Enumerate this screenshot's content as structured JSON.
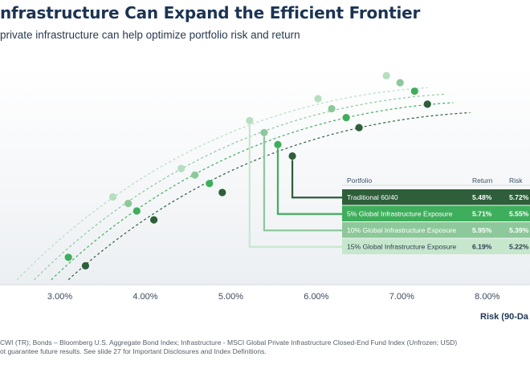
{
  "header": {
    "title": "nfrastructure Can Expand the Efficient Frontier",
    "subtitle": "private infrastructure can help optimize portfolio risk and return"
  },
  "chart_data": {
    "type": "line",
    "title": "nfrastructure Can Expand the Efficient Frontier",
    "subtitle": "private infrastructure can help optimize portfolio risk and return",
    "xlabel": "Risk (90-Da",
    "x_ticks": [
      "3.00%",
      "4.00%",
      "5.00%",
      "6.00%",
      "7.00%",
      "8.00%"
    ],
    "xlim": [
      2.3,
      8.5
    ],
    "ylim": [
      2.9,
      7.0
    ],
    "grid": false,
    "legend": {
      "position": "center-right",
      "headers": {
        "portfolio": "Portfolio",
        "return": "Return",
        "risk": "Risk"
      }
    },
    "series": [
      {
        "name": "Traditional 60/40",
        "return_label": "5.48%",
        "risk_label": "5.72%",
        "color": "#2e5e3a",
        "text_color": "#ffffff",
        "curve": [
          [
            3.1,
            3.0
          ],
          [
            7.8,
            6.35
          ]
        ],
        "points": [
          [
            3.3,
            3.28
          ],
          [
            4.1,
            4.2
          ],
          [
            4.9,
            4.75
          ],
          [
            5.72,
            5.48
          ],
          [
            6.5,
            6.05
          ],
          [
            7.3,
            6.52
          ]
        ]
      },
      {
        "name": "5% Global Infrastructure Exposure",
        "return_label": "5.71%",
        "risk_label": "5.55%",
        "color": "#3fae5c",
        "text_color": "#ffffff",
        "curve": [
          [
            2.9,
            3.0
          ],
          [
            7.6,
            6.55
          ]
        ],
        "points": [
          [
            3.1,
            3.45
          ],
          [
            3.9,
            4.38
          ],
          [
            4.75,
            4.93
          ],
          [
            5.55,
            5.71
          ],
          [
            6.35,
            6.25
          ],
          [
            7.15,
            6.78
          ]
        ]
      },
      {
        "name": "10% Global Infrastructure Exposure",
        "return_label": "5.95%",
        "risk_label": "5.39%",
        "color": "#8dc89a",
        "text_color": "#ffffff",
        "curve": [
          [
            2.7,
            3.0
          ],
          [
            7.5,
            6.72
          ]
        ],
        "points": [
          [
            3.8,
            4.53
          ],
          [
            4.58,
            5.1
          ],
          [
            5.39,
            5.95
          ],
          [
            6.18,
            6.43
          ],
          [
            6.98,
            6.95
          ]
        ]
      },
      {
        "name": "15% Global Infrastructure Exposure",
        "return_label": "6.19%",
        "risk_label": "5.22%",
        "color": "#c7e7cd",
        "text_color": "#2c3e50",
        "curve": [
          [
            2.5,
            3.0
          ],
          [
            7.3,
            6.85
          ]
        ],
        "points": [
          [
            3.62,
            4.66
          ],
          [
            4.42,
            5.23
          ],
          [
            5.22,
            6.19
          ],
          [
            6.02,
            6.63
          ],
          [
            6.82,
            7.09
          ]
        ]
      }
    ],
    "point_colors": [
      "#2e5e3a",
      "#3fae5c",
      "#8dc89a",
      "#b5dfbd"
    ]
  },
  "footnote": {
    "line1": "CWI (TR); Bonds – Bloomberg U.S. Aggregate Bond Index; Infrastructure - MSCI Global Private Infrastructure Closed-End Fund Index (Unfrozen; USD)",
    "line2": "ot guarantee future results. See slide 27 for Important Disclosures and Index Definitions."
  }
}
